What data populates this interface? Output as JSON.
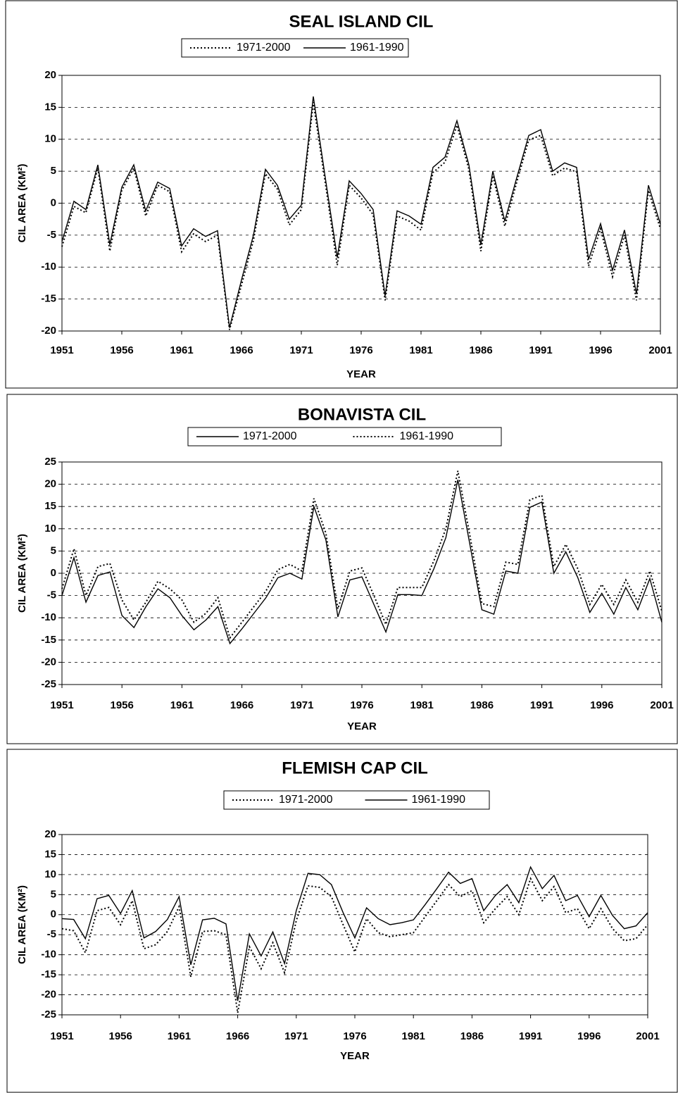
{
  "chart_data": [
    {
      "type": "line",
      "title": "SEAL ISLAND CIL",
      "x_label": "YEAR",
      "y_label": "CIL AREA (KM²)",
      "legend": "top",
      "grid": true,
      "x": [
        1951,
        1952,
        1953,
        1954,
        1955,
        1956,
        1957,
        1958,
        1959,
        1960,
        1961,
        1962,
        1963,
        1964,
        1965,
        1966,
        1967,
        1968,
        1969,
        1970,
        1971,
        1972,
        1973,
        1974,
        1975,
        1976,
        1977,
        1978,
        1979,
        1980,
        1981,
        1982,
        1983,
        1984,
        1985,
        1986,
        1987,
        1988,
        1989,
        1990,
        1991,
        1992,
        1993,
        1994,
        1995,
        1996,
        1997,
        1998,
        1999,
        2000,
        2001
      ],
      "xlim": [
        1951,
        2001
      ],
      "xticks": [
        1951,
        1956,
        1961,
        1966,
        1971,
        1976,
        1981,
        1986,
        1991,
        1996,
        2001
      ],
      "ylim": [
        -20,
        20
      ],
      "yticks": [
        -20,
        -15,
        -10,
        -5,
        0,
        5,
        10,
        15,
        20
      ],
      "series": [
        {
          "name": "1971-2000",
          "color": "#000000",
          "dash": "dotted",
          "values": [
            -6.8,
            -0.5,
            -1.5,
            5.5,
            -7.5,
            2,
            5.5,
            -2,
            2.8,
            1.8,
            -7.6,
            -4.8,
            -6,
            -5,
            -19.8,
            -12.8,
            -5.8,
            4.6,
            2.2,
            -3.4,
            -1,
            15.8,
            3.2,
            -9.7,
            2.8,
            0.8,
            -1.8,
            -15.2,
            -2,
            -2.8,
            -4.2,
            4.8,
            6.4,
            12.2,
            5.3,
            -7.5,
            4.3,
            -3.6,
            3.3,
            9.9,
            10.6,
            4.3,
            5.5,
            4.9,
            -9.8,
            -4,
            -11.5,
            -5,
            -15.2,
            2,
            -4
          ]
        },
        {
          "name": "1961-1990",
          "color": "#000000",
          "dash": "solid",
          "values": [
            -6,
            0.3,
            -1,
            6,
            -6.5,
            2.5,
            6,
            -1.2,
            3.3,
            2.3,
            -6.7,
            -4,
            -5.2,
            -4.3,
            -19.5,
            -12,
            -5,
            5.3,
            2.8,
            -2.5,
            -0.3,
            16.7,
            4,
            -8.5,
            3.5,
            1.5,
            -1,
            -14.5,
            -1.2,
            -2,
            -3.3,
            5.6,
            7.2,
            12.9,
            6,
            -6.5,
            5,
            -2.8,
            4,
            10.6,
            11.5,
            5,
            6.3,
            5.6,
            -8.8,
            -3.2,
            -10.5,
            -4.2,
            -14.2,
            2.8,
            -3.3
          ]
        }
      ]
    },
    {
      "type": "line",
      "title": "BONAVISTA CIL",
      "x_label": "YEAR",
      "y_label": "CIL AREA (KM²)",
      "legend": "top",
      "grid": true,
      "x": [
        1951,
        1952,
        1953,
        1954,
        1955,
        1956,
        1957,
        1958,
        1959,
        1960,
        1961,
        1962,
        1963,
        1964,
        1965,
        1966,
        1967,
        1968,
        1969,
        1970,
        1971,
        1972,
        1973,
        1974,
        1975,
        1976,
        1977,
        1978,
        1979,
        1980,
        1981,
        1982,
        1983,
        1984,
        1985,
        1986,
        1987,
        1988,
        1989,
        1990,
        1991,
        1992,
        1993,
        1994,
        1995,
        1996,
        1997,
        1998,
        1999,
        2000,
        2001
      ],
      "xlim": [
        1951,
        2001
      ],
      "xticks": [
        1951,
        1956,
        1961,
        1966,
        1971,
        1976,
        1981,
        1986,
        1991,
        1996,
        2001
      ],
      "ylim": [
        -25,
        25
      ],
      "yticks": [
        -25,
        -20,
        -15,
        -10,
        -5,
        0,
        5,
        10,
        15,
        20,
        25
      ],
      "series": [
        {
          "name": "1971-2000",
          "color": "#000000",
          "dash": "solid",
          "values": [
            -5,
            3.5,
            -6.5,
            -0.5,
            0.3,
            -9.5,
            -12.2,
            -7.5,
            -3.5,
            -5.5,
            -9.5,
            -12.7,
            -10.5,
            -7.5,
            -15.8,
            -12.5,
            -9,
            -5.5,
            -1,
            0,
            -1.3,
            15,
            7.5,
            -9.8,
            -1.5,
            -0.8,
            -7,
            -13.2,
            -4.8,
            -4.8,
            -5,
            1,
            8,
            21,
            6.5,
            -8.2,
            -9.2,
            0.5,
            0,
            14.8,
            16,
            0,
            4.8,
            -1,
            -8.8,
            -4.5,
            -9.2,
            -3.2,
            -8.2,
            -1.2,
            -11
          ]
        },
        {
          "name": "1961-1990",
          "color": "#000000",
          "dash": "dotted",
          "values": [
            -3.5,
            5.5,
            -5,
            1.5,
            2.2,
            -6,
            -10.5,
            -6.5,
            -1.8,
            -3.5,
            -6,
            -11,
            -9,
            -5.5,
            -14.5,
            -11,
            -7.5,
            -4,
            0.8,
            2,
            0.5,
            16.8,
            9,
            -8,
            0.5,
            1.2,
            -5,
            -11.5,
            -3.2,
            -3.2,
            -3.2,
            2.8,
            10,
            23,
            8.5,
            -6.8,
            -7.5,
            2.5,
            2,
            16.5,
            17.5,
            1.5,
            6.5,
            1,
            -7,
            -2.5,
            -7,
            -1.5,
            -6.5,
            0.5,
            -8.5
          ]
        }
      ]
    },
    {
      "type": "line",
      "title": "FLEMISH CAP CIL",
      "x_label": "YEAR",
      "y_label": "CIL AREA (KM²)",
      "legend": "top",
      "grid": true,
      "x": [
        1951,
        1952,
        1953,
        1954,
        1955,
        1956,
        1957,
        1958,
        1959,
        1960,
        1961,
        1962,
        1963,
        1964,
        1965,
        1966,
        1967,
        1968,
        1969,
        1970,
        1971,
        1972,
        1973,
        1974,
        1975,
        1976,
        1977,
        1978,
        1979,
        1980,
        1981,
        1982,
        1983,
        1984,
        1985,
        1986,
        1987,
        1988,
        1989,
        1990,
        1991,
        1992,
        1993,
        1994,
        1995,
        1996,
        1997,
        1998,
        1999,
        2000,
        2001
      ],
      "xlim": [
        1951,
        2001
      ],
      "xticks": [
        1951,
        1956,
        1961,
        1966,
        1971,
        1976,
        1981,
        1986,
        1991,
        1996,
        2001
      ],
      "ylim": [
        -25,
        20
      ],
      "yticks": [
        -25,
        -20,
        -15,
        -10,
        -5,
        0,
        5,
        10,
        15,
        20
      ],
      "series": [
        {
          "name": "1971-2000",
          "color": "#000000",
          "dash": "dotted",
          "values": [
            -3.5,
            -4,
            -9.5,
            1,
            1.8,
            -2.5,
            3.5,
            -8.5,
            -7.5,
            -4.2,
            2,
            -15.5,
            -4.2,
            -4,
            -5,
            -24.5,
            -8,
            -13.5,
            -7,
            -14.5,
            -1.5,
            7.2,
            6.8,
            4.5,
            -2.5,
            -9.3,
            -1,
            -4.5,
            -5.5,
            -5,
            -4.5,
            -0.5,
            3.5,
            7.5,
            4.5,
            6,
            -2,
            1.5,
            4.5,
            0,
            9,
            3.5,
            7,
            0.5,
            1.5,
            -3.5,
            1.5,
            -3.5,
            -6.5,
            -6,
            -2.5
          ]
        },
        {
          "name": "1961-1990",
          "color": "#000000",
          "dash": "solid",
          "values": [
            -1,
            -1.2,
            -6,
            4,
            4.8,
            0.3,
            6,
            -5.8,
            -4.2,
            -1.2,
            4.5,
            -12.5,
            -1.3,
            -0.9,
            -2.3,
            -21.5,
            -4.8,
            -10.3,
            -4.3,
            -12.2,
            1,
            10.3,
            10,
            7.5,
            0.5,
            -5.8,
            1.7,
            -1,
            -2.5,
            -2,
            -1.3,
            2.5,
            6.5,
            10.6,
            7.8,
            9,
            1,
            4.8,
            7.5,
            3,
            11.9,
            6.5,
            9.8,
            3.5,
            4.8,
            -0.5,
            4.8,
            -0.2,
            -3.5,
            -2.8,
            0.5
          ]
        }
      ]
    }
  ]
}
